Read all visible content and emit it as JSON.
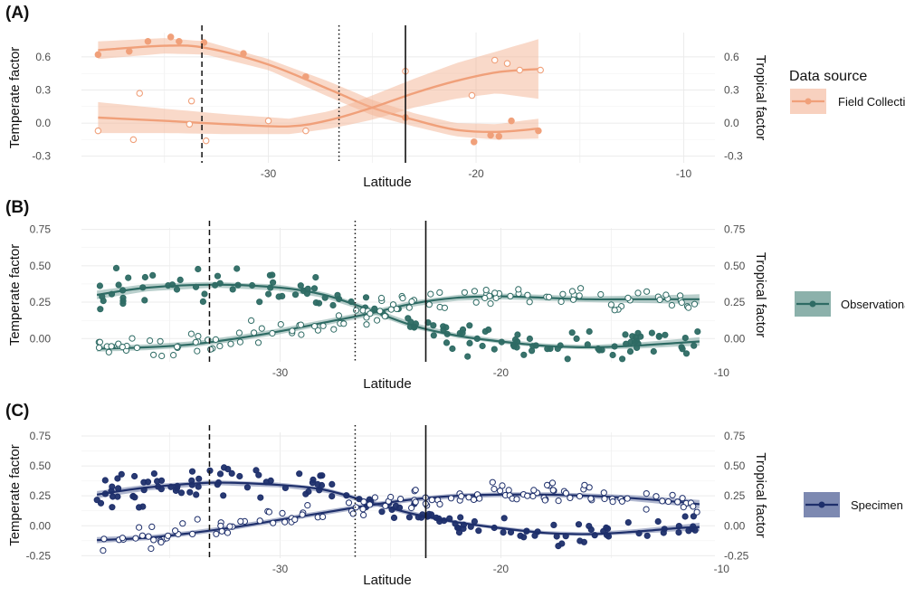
{
  "chart_data": [
    {
      "type": "scatter",
      "panel_label": "(A)",
      "xlabel": "Latitude",
      "ylabel_left": "Temperate factor",
      "ylabel_right": "Tropical factor",
      "xlim": [
        -39,
        -8.5
      ],
      "ylim": [
        -0.36,
        0.82
      ],
      "x_ticks": [
        -30,
        -20,
        -10
      ],
      "x_tick_labels": [
        "-30",
        "-20",
        "-10"
      ],
      "y_ticks": [
        -0.3,
        0,
        0.3,
        0.6
      ],
      "y_tick_labels": [
        "-0.3",
        "0.0",
        "0.3",
        "0.6"
      ],
      "vlines": [
        {
          "x": -33.2,
          "style": "dashed"
        },
        {
          "x": -26.6,
          "style": "dotted"
        },
        {
          "x": -23.4,
          "style": "solid"
        }
      ],
      "legend": {
        "title": "Data source",
        "entries": [
          "Field Collection"
        ]
      },
      "color": "#f0a07a",
      "band_color": "#f4b394",
      "series": [
        {
          "name": "Temperate factor",
          "marker": "filled",
          "points": [
            [
              -38.2,
              0.62
            ],
            [
              -36.7,
              0.65
            ],
            [
              -35.8,
              0.74
            ],
            [
              -34.7,
              0.78
            ],
            [
              -34.3,
              0.74
            ],
            [
              -33.1,
              0.73
            ],
            [
              -31.2,
              0.63
            ],
            [
              -28.2,
              0.42
            ],
            [
              -23.4,
              0.05
            ],
            [
              -20.1,
              -0.17
            ],
            [
              -19.3,
              -0.11
            ],
            [
              -18.9,
              -0.12
            ],
            [
              -18.3,
              0.02
            ],
            [
              -17,
              -0.07
            ]
          ],
          "fit": [
            [
              -38.2,
              0.66
            ],
            [
              -35,
              0.7
            ],
            [
              -33,
              0.68
            ],
            [
              -30,
              0.53
            ],
            [
              -27,
              0.3
            ],
            [
              -25,
              0.14
            ],
            [
              -23,
              0.03
            ],
            [
              -21,
              -0.06
            ],
            [
              -19,
              -0.08
            ],
            [
              -17,
              -0.05
            ]
          ],
          "band": [
            0.08,
            0.07,
            0.06,
            0.05,
            0.07,
            0.07,
            0.06,
            0.06,
            0.07,
            0.09
          ]
        },
        {
          "name": "Tropical factor",
          "marker": "open",
          "points": [
            [
              -38.2,
              -0.07
            ],
            [
              -36.5,
              -0.15
            ],
            [
              -36.2,
              0.27
            ],
            [
              -33.7,
              0.2
            ],
            [
              -33.8,
              -0.01
            ],
            [
              -33,
              -0.16
            ],
            [
              -30,
              0.02
            ],
            [
              -28.2,
              -0.07
            ],
            [
              -23.4,
              0.47
            ],
            [
              -20.2,
              0.25
            ],
            [
              -19.1,
              0.57
            ],
            [
              -18.5,
              0.54
            ],
            [
              -17.9,
              0.48
            ],
            [
              -16.9,
              0.48
            ]
          ],
          "fit": [
            [
              -38.2,
              0.05
            ],
            [
              -35,
              0.02
            ],
            [
              -32,
              -0.01
            ],
            [
              -29,
              -0.03
            ],
            [
              -27,
              0.03
            ],
            [
              -25,
              0.14
            ],
            [
              -23,
              0.27
            ],
            [
              -21,
              0.38
            ],
            [
              -19,
              0.46
            ],
            [
              -17,
              0.49
            ]
          ],
          "band": [
            0.14,
            0.11,
            0.09,
            0.07,
            0.08,
            0.11,
            0.13,
            0.16,
            0.19,
            0.27
          ]
        }
      ]
    },
    {
      "type": "scatter",
      "panel_label": "(B)",
      "xlabel": "Latitude",
      "ylabel_left": "Temperate factor",
      "ylabel_right": "Tropical factor",
      "xlim": [
        -39,
        -10.3
      ],
      "ylim": [
        -0.16,
        0.76
      ],
      "x_ticks": [
        -30,
        -20,
        -10
      ],
      "x_tick_labels": [
        "-30",
        "-20",
        "-10"
      ],
      "y_ticks": [
        0,
        0.25,
        0.5,
        0.75
      ],
      "y_tick_labels": [
        "0.00",
        "0.25",
        "0.50",
        "0.75"
      ],
      "vlines": [
        {
          "x": -33.2,
          "style": "dashed"
        },
        {
          "x": -26.6,
          "style": "dotted"
        },
        {
          "x": -23.4,
          "style": "solid"
        }
      ],
      "legend": {
        "entries": [
          "Observational"
        ]
      },
      "color": "#2e6b64",
      "band_color": "#7fa8a2",
      "n_points": 260,
      "series": [
        {
          "name": "Temperate factor",
          "marker": "filled",
          "fit": [
            [
              -38.3,
              0.3
            ],
            [
              -36,
              0.35
            ],
            [
              -33,
              0.37
            ],
            [
              -30,
              0.35
            ],
            [
              -28,
              0.3
            ],
            [
              -26,
              0.2
            ],
            [
              -24,
              0.09
            ],
            [
              -22,
              0.02
            ],
            [
              -20,
              -0.02
            ],
            [
              -18,
              -0.05
            ],
            [
              -16,
              -0.06
            ],
            [
              -14,
              -0.05
            ],
            [
              -12,
              -0.03
            ],
            [
              -11,
              -0.02
            ]
          ],
          "band": [
            0.03,
            0.025,
            0.02,
            0.02,
            0.02,
            0.02,
            0.02,
            0.015,
            0.015,
            0.015,
            0.015,
            0.02,
            0.025,
            0.03
          ],
          "scatter_spread": 0.15
        },
        {
          "name": "Tropical factor",
          "marker": "open",
          "fit": [
            [
              -38.3,
              -0.07
            ],
            [
              -36,
              -0.06
            ],
            [
              -34,
              -0.04
            ],
            [
              -32,
              0
            ],
            [
              -30,
              0.05
            ],
            [
              -28,
              0.11
            ],
            [
              -26,
              0.17
            ],
            [
              -24,
              0.24
            ],
            [
              -22,
              0.28
            ],
            [
              -20,
              0.29
            ],
            [
              -18,
              0.28
            ],
            [
              -16,
              0.27
            ],
            [
              -14,
              0.27
            ],
            [
              -12,
              0.27
            ],
            [
              -11,
              0.27
            ]
          ],
          "band": [
            0.02,
            0.02,
            0.02,
            0.02,
            0.02,
            0.02,
            0.02,
            0.02,
            0.02,
            0.02,
            0.02,
            0.02,
            0.025,
            0.03,
            0.035
          ],
          "scatter_spread": 0.13
        }
      ]
    },
    {
      "type": "scatter",
      "panel_label": "(C)",
      "xlabel": "Latitude",
      "ylabel_left": "Temperate factor",
      "ylabel_right": "Tropical factor",
      "xlim": [
        -39,
        -10.3
      ],
      "ylim": [
        -0.27,
        0.78
      ],
      "x_ticks": [
        -30,
        -20,
        -10
      ],
      "x_tick_labels": [
        "-30",
        "-20",
        "-10"
      ],
      "y_ticks": [
        -0.25,
        0,
        0.25,
        0.5,
        0.75
      ],
      "y_tick_labels": [
        "-0.25",
        "0.00",
        "0.25",
        "0.50",
        "0.75"
      ],
      "vlines": [
        {
          "x": -33.2,
          "style": "dashed"
        },
        {
          "x": -26.6,
          "style": "dotted"
        },
        {
          "x": -23.4,
          "style": "solid"
        }
      ],
      "legend": {
        "entries": [
          "Specimen"
        ]
      },
      "color": "#1e2f6b",
      "band_color": "#6f7ca8",
      "n_points": 270,
      "series": [
        {
          "name": "Temperate factor",
          "marker": "filled",
          "fit": [
            [
              -38.3,
              0.26
            ],
            [
              -36,
              0.32
            ],
            [
              -33,
              0.36
            ],
            [
              -30,
              0.34
            ],
            [
              -28,
              0.3
            ],
            [
              -26,
              0.2
            ],
            [
              -24,
              0.1
            ],
            [
              -22,
              0.03
            ],
            [
              -20,
              -0.02
            ],
            [
              -18,
              -0.06
            ],
            [
              -16,
              -0.07
            ],
            [
              -14,
              -0.05
            ],
            [
              -12,
              -0.02
            ],
            [
              -11,
              -0.01
            ]
          ],
          "band": [
            0.03,
            0.025,
            0.02,
            0.02,
            0.02,
            0.02,
            0.02,
            0.015,
            0.015,
            0.015,
            0.015,
            0.02,
            0.025,
            0.035
          ],
          "scatter_spread": 0.15
        },
        {
          "name": "Tropical factor",
          "marker": "open",
          "fit": [
            [
              -38.3,
              -0.12
            ],
            [
              -36,
              -0.1
            ],
            [
              -34,
              -0.06
            ],
            [
              -32,
              -0.01
            ],
            [
              -30,
              0.05
            ],
            [
              -28,
              0.11
            ],
            [
              -26,
              0.17
            ],
            [
              -24,
              0.22
            ],
            [
              -22,
              0.25
            ],
            [
              -20,
              0.26
            ],
            [
              -18,
              0.26
            ],
            [
              -16,
              0.25
            ],
            [
              -14,
              0.23
            ],
            [
              -12,
              0.2
            ],
            [
              -11,
              0.18
            ]
          ],
          "band": [
            0.025,
            0.02,
            0.02,
            0.02,
            0.02,
            0.02,
            0.02,
            0.02,
            0.02,
            0.02,
            0.02,
            0.02,
            0.025,
            0.03,
            0.035
          ],
          "scatter_spread": 0.13
        }
      ]
    }
  ]
}
